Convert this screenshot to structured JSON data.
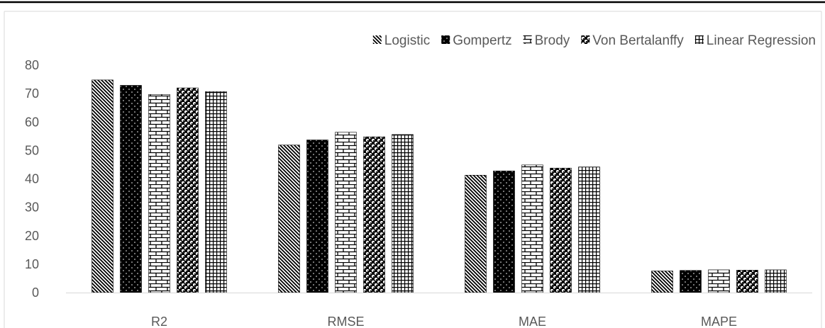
{
  "chart_data": {
    "type": "bar",
    "title": "",
    "xlabel": "",
    "ylabel": "",
    "categories": [
      "R2",
      "RMSE",
      "MAE",
      "MAPE"
    ],
    "ylim": [
      0,
      80
    ],
    "yticks": [
      0,
      10,
      20,
      30,
      40,
      50,
      60,
      70,
      80
    ],
    "grid": false,
    "legend_position": "top",
    "series": [
      {
        "name": "Logistic",
        "values": [
          74.8,
          51.9,
          41.3,
          7.6
        ],
        "pattern": "diagonal-stripes",
        "color": "#000000"
      },
      {
        "name": "Gompertz",
        "values": [
          72.9,
          53.7,
          42.8,
          7.8
        ],
        "pattern": "dotted",
        "color": "#000000"
      },
      {
        "name": "Brody",
        "values": [
          69.7,
          56.4,
          44.9,
          8.0
        ],
        "pattern": "brick",
        "color": "#000000"
      },
      {
        "name": "Von Bertalanffy",
        "values": [
          72.0,
          54.8,
          43.8,
          7.9
        ],
        "pattern": "spheres",
        "color": "#000000"
      },
      {
        "name": "Linear Regression",
        "values": [
          70.7,
          55.6,
          44.2,
          8.0
        ],
        "pattern": "grid",
        "color": "#000000"
      }
    ]
  }
}
